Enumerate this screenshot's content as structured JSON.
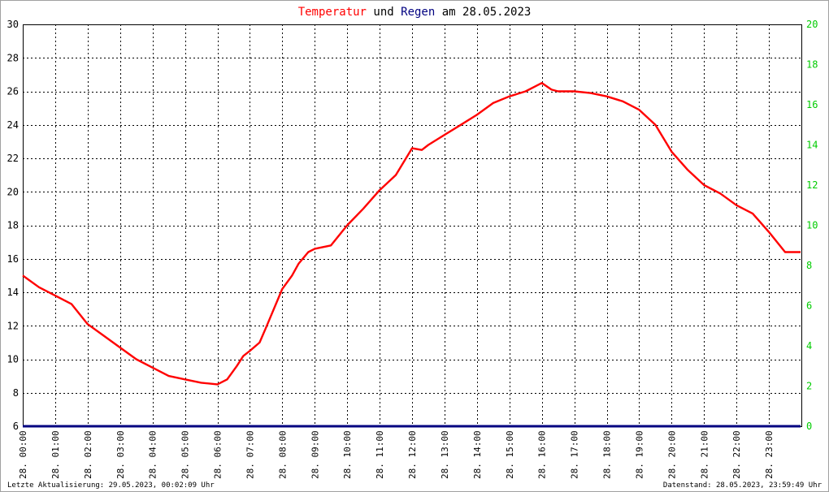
{
  "title": {
    "part1": "Temperatur",
    "part2": " und ",
    "part3": "Regen",
    "part4": " am 28.05.2023",
    "color_temp": "#ff0000",
    "color_rain": "#000080"
  },
  "footer": {
    "left": "Letzte Aktualisierung: 29.05.2023, 00:02:09 Uhr",
    "right": "Datenstand: 28.05.2023, 23:59:49 Uhr"
  },
  "chart_data": {
    "type": "line",
    "grid": true,
    "x_tick_labels": [
      "28. 00:00",
      "28. 01:00",
      "28. 02:00",
      "28. 03:00",
      "28. 04:00",
      "28. 05:00",
      "28. 06:00",
      "28. 07:00",
      "28. 08:00",
      "28. 09:00",
      "28. 10:00",
      "28. 11:00",
      "28. 12:00",
      "28. 13:00",
      "28. 14:00",
      "28. 15:00",
      "28. 16:00",
      "28. 17:00",
      "28. 18:00",
      "28. 19:00",
      "28. 20:00",
      "28. 21:00",
      "28. 22:00",
      "28. 23:00"
    ],
    "y_left": {
      "lim": [
        6,
        30
      ],
      "ticks": [
        "6",
        "8",
        "10",
        "12",
        "14",
        "16",
        "18",
        "20",
        "22",
        "24",
        "26",
        "28",
        "30"
      ],
      "color": "#000000"
    },
    "y_right": {
      "lim": [
        0,
        20
      ],
      "ticks": [
        "0",
        "2",
        "4",
        "6",
        "8",
        "10",
        "12",
        "14",
        "16",
        "18",
        "20"
      ],
      "color": "#00cc00"
    },
    "series": [
      {
        "axis": "left",
        "color": "#ff0000",
        "x": [
          0,
          0.5,
          1,
          1.5,
          2,
          2.5,
          3,
          3.5,
          4,
          4.5,
          5,
          5.5,
          6,
          6.3,
          6.6,
          6.8,
          7,
          7.3,
          7.5,
          8,
          8.3,
          8.5,
          8.8,
          9,
          9.5,
          10,
          10.5,
          11,
          11.5,
          12,
          12.3,
          12.5,
          13,
          13.5,
          14,
          14.5,
          15,
          15.5,
          15.8,
          16,
          16.3,
          16.5,
          17,
          17.5,
          18,
          18.5,
          19,
          19.5,
          20,
          20.5,
          21,
          21.5,
          22,
          22.5,
          23,
          23.5,
          24
        ],
        "y": [
          15.0,
          14.3,
          13.8,
          13.3,
          12.1,
          11.4,
          10.7,
          10.0,
          9.5,
          9.0,
          8.8,
          8.6,
          8.5,
          8.8,
          9.6,
          10.2,
          10.5,
          11.0,
          11.9,
          14.2,
          15.0,
          15.7,
          16.4,
          16.6,
          16.8,
          18.0,
          19.0,
          20.1,
          21.0,
          22.6,
          22.5,
          22.8,
          23.4,
          24.0,
          24.6,
          25.3,
          25.7,
          26.0,
          26.3,
          26.5,
          26.1,
          26.0,
          26.0,
          25.9,
          25.7,
          25.4,
          24.9,
          24.0,
          22.4,
          21.3,
          20.4,
          19.9,
          19.2,
          18.7,
          17.6,
          16.4,
          16.4
        ]
      },
      {
        "axis": "right",
        "color": "#000080",
        "x": [
          0,
          24
        ],
        "y": [
          0,
          0
        ]
      }
    ]
  }
}
